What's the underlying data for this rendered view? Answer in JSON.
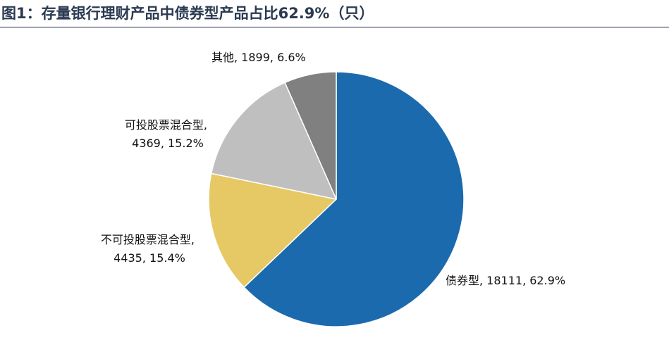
{
  "chart_data": {
    "type": "pie",
    "title": "图1：存量银行理财产品中债券型产品占比62.9%（只）",
    "categories": [
      "债券型",
      "不可投股票混合型",
      "可投股票混合型",
      "其他"
    ],
    "values": [
      18111,
      4435,
      4369,
      1899
    ],
    "percents": [
      "62.9%",
      "15.4%",
      "15.2%",
      "6.6%"
    ],
    "colors": [
      "#1b6aae",
      "#e6c965",
      "#bfbfbf",
      "#808080"
    ],
    "labels": [
      {
        "line1": "债券型, 18111, 62.9%",
        "line2": ""
      },
      {
        "line1": "不可投股票混合型,",
        "line2": "4435, 15.4%"
      },
      {
        "line1": "可投股票混合型,",
        "line2": "4369, 15.2%"
      },
      {
        "line1": "其他, 1899, 6.6%",
        "line2": ""
      }
    ],
    "start_angle": "12 o'clock",
    "direction": "clockwise",
    "legend": "none"
  }
}
